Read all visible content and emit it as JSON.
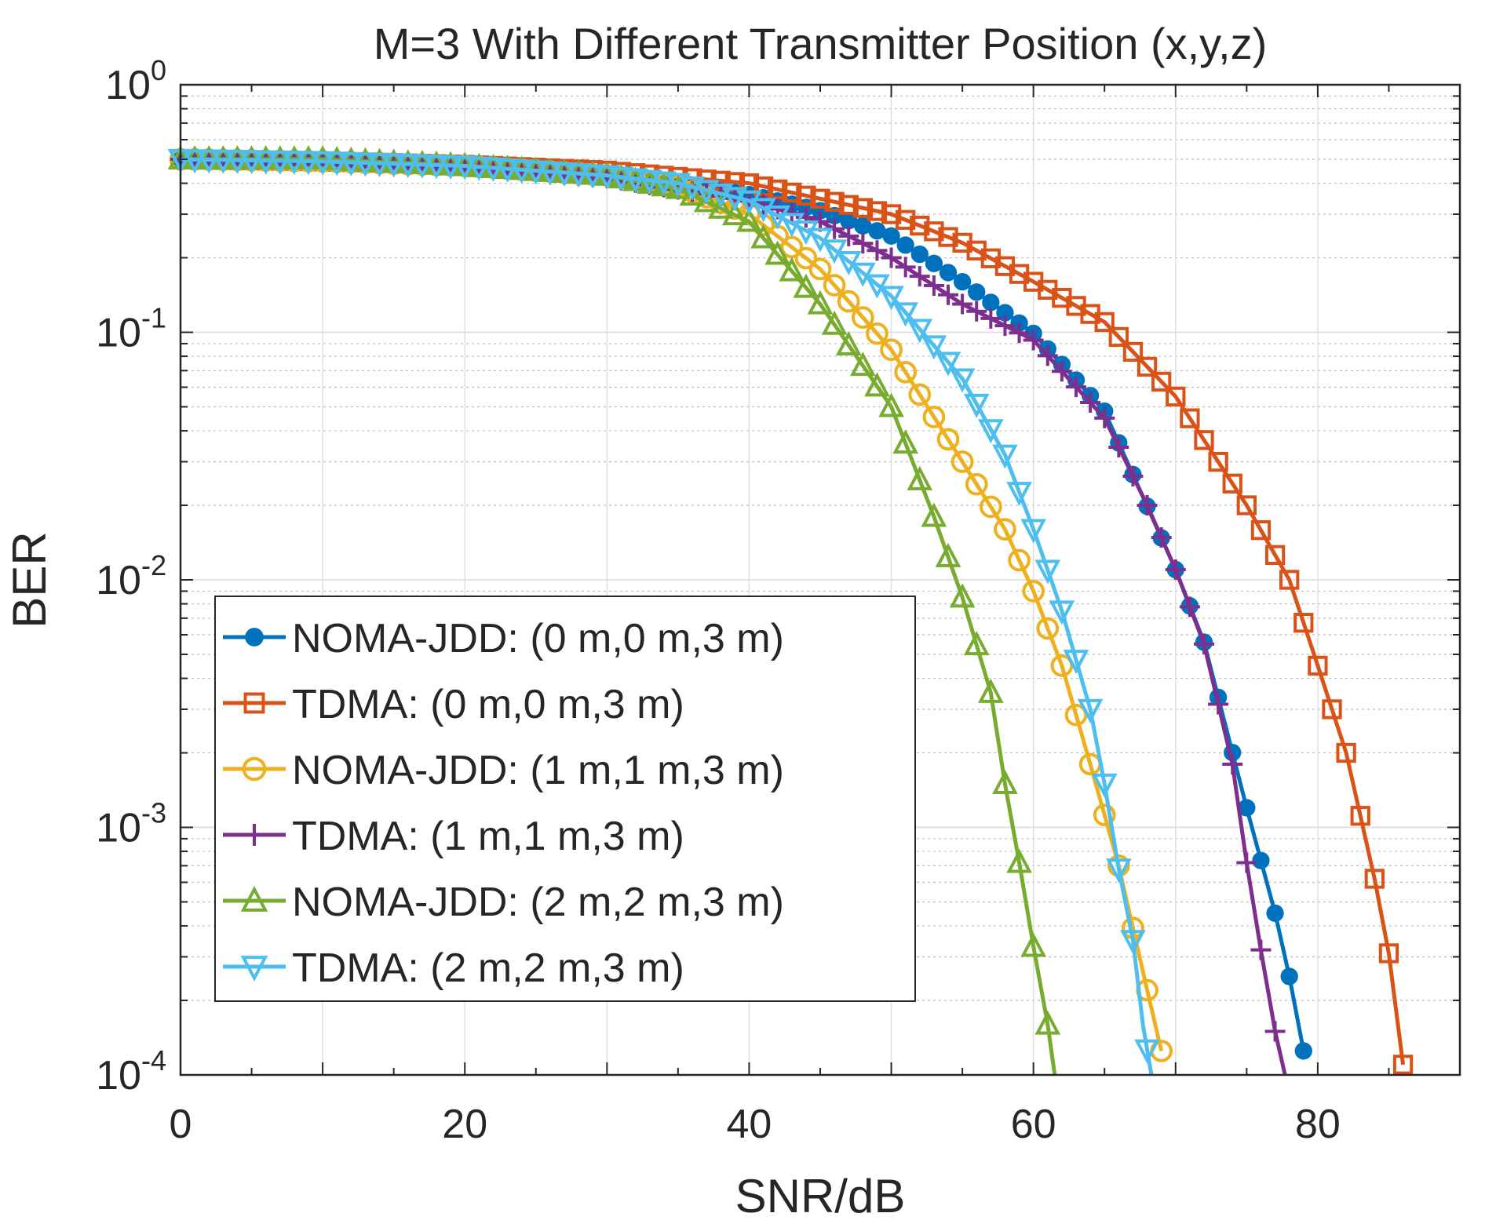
{
  "chart_data": {
    "type": "line",
    "title": "M=3 With Different Transmitter Position (x,y,z)",
    "xlabel": "SNR/dB",
    "ylabel": "BER",
    "xlim": [
      0,
      90
    ],
    "ylim": [
      0.0001,
      1
    ],
    "yscale": "log",
    "grid": true,
    "legend_position": "bottom-left",
    "x_ticks": [
      0,
      20,
      40,
      60,
      80
    ],
    "y_ticks": [
      {
        "value": 1,
        "base": "10",
        "exp": "0"
      },
      {
        "value": 0.1,
        "base": "10",
        "exp": "-1"
      },
      {
        "value": 0.01,
        "base": "10",
        "exp": "-2"
      },
      {
        "value": 0.001,
        "base": "10",
        "exp": "-3"
      },
      {
        "value": 0.0001,
        "base": "10",
        "exp": "-4"
      }
    ],
    "series": [
      {
        "name": "NOMA-JDD: (0 m,0 m,3 m)",
        "color": "#0072BD",
        "marker": "dot",
        "points": [
          [
            0,
            0.5
          ],
          [
            10,
            0.49
          ],
          [
            20,
            0.47
          ],
          [
            30,
            0.43
          ],
          [
            40,
            0.36
          ],
          [
            45,
            0.31
          ],
          [
            50,
            0.245
          ],
          [
            55,
            0.16
          ],
          [
            60,
            0.099
          ],
          [
            65,
            0.048
          ],
          [
            70,
            0.011
          ],
          [
            72,
            0.0056
          ],
          [
            75,
            0.0012
          ],
          [
            77,
            0.00045
          ],
          [
            78,
            0.00025
          ],
          [
            79,
            0.000125
          ]
        ]
      },
      {
        "name": "TDMA: (0 m,0 m,3 m)",
        "color": "#D95319",
        "marker": "square",
        "points": [
          [
            0,
            0.5
          ],
          [
            10,
            0.49
          ],
          [
            20,
            0.475
          ],
          [
            30,
            0.45
          ],
          [
            40,
            0.4
          ],
          [
            50,
            0.3
          ],
          [
            55,
            0.23
          ],
          [
            60,
            0.16
          ],
          [
            65,
            0.11
          ],
          [
            70,
            0.055
          ],
          [
            75,
            0.02
          ],
          [
            78,
            0.01
          ],
          [
            80,
            0.0045
          ],
          [
            82,
            0.002
          ],
          [
            84,
            0.00062
          ],
          [
            85,
            0.00031
          ],
          [
            86,
            0.00011
          ]
        ]
      },
      {
        "name": "NOMA-JDD: (1 m,1 m,3 m)",
        "color": "#EDB120",
        "marker": "circle",
        "points": [
          [
            0,
            0.5
          ],
          [
            10,
            0.49
          ],
          [
            20,
            0.47
          ],
          [
            30,
            0.43
          ],
          [
            35,
            0.39
          ],
          [
            40,
            0.3
          ],
          [
            45,
            0.18
          ],
          [
            50,
            0.085
          ],
          [
            55,
            0.03
          ],
          [
            58,
            0.016
          ],
          [
            60,
            0.009
          ],
          [
            62,
            0.0045
          ],
          [
            64,
            0.0018
          ],
          [
            66,
            0.0007
          ],
          [
            68,
            0.00022
          ],
          [
            69,
            0.000125
          ]
        ]
      },
      {
        "name": "TDMA: (1 m,1 m,3 m)",
        "color": "#7E2F8E",
        "marker": "plus",
        "points": [
          [
            0,
            0.5
          ],
          [
            10,
            0.49
          ],
          [
            20,
            0.47
          ],
          [
            30,
            0.42
          ],
          [
            40,
            0.34
          ],
          [
            45,
            0.28
          ],
          [
            50,
            0.2
          ],
          [
            55,
            0.13
          ],
          [
            60,
            0.093
          ],
          [
            65,
            0.045
          ],
          [
            68,
            0.02
          ],
          [
            70,
            0.011
          ],
          [
            72,
            0.0055
          ],
          [
            74,
            0.0018
          ],
          [
            75,
            0.00072
          ],
          [
            76,
            0.00032
          ],
          [
            77,
            0.00015
          ],
          [
            77.7,
            0.0001
          ]
        ]
      },
      {
        "name": "NOMA-JDD: (2 m,2 m,3 m)",
        "color": "#77AC30",
        "marker": "triangle-up",
        "points": [
          [
            0,
            0.5
          ],
          [
            10,
            0.5
          ],
          [
            20,
            0.47
          ],
          [
            30,
            0.43
          ],
          [
            35,
            0.38
          ],
          [
            40,
            0.28
          ],
          [
            45,
            0.13
          ],
          [
            50,
            0.05
          ],
          [
            53,
            0.018
          ],
          [
            55,
            0.0085
          ],
          [
            57,
            0.0035
          ],
          [
            58,
            0.0015
          ],
          [
            59,
            0.00072
          ],
          [
            60,
            0.00033
          ],
          [
            61,
            0.00016
          ],
          [
            61.5,
            0.0001
          ]
        ]
      },
      {
        "name": "TDMA: (2 m,2 m,3 m)",
        "color": "#4DBEEE",
        "marker": "triangle-down",
        "points": [
          [
            0,
            0.5
          ],
          [
            10,
            0.49
          ],
          [
            20,
            0.47
          ],
          [
            30,
            0.43
          ],
          [
            35,
            0.4
          ],
          [
            40,
            0.34
          ],
          [
            45,
            0.24
          ],
          [
            50,
            0.14
          ],
          [
            55,
            0.065
          ],
          [
            58,
            0.032
          ],
          [
            60,
            0.016
          ],
          [
            62,
            0.0075
          ],
          [
            64,
            0.003
          ],
          [
            65,
            0.0015
          ],
          [
            66,
            0.00068
          ],
          [
            67,
            0.00035
          ],
          [
            67.7,
            0.00016
          ],
          [
            68.3,
            0.0001
          ]
        ]
      }
    ]
  }
}
